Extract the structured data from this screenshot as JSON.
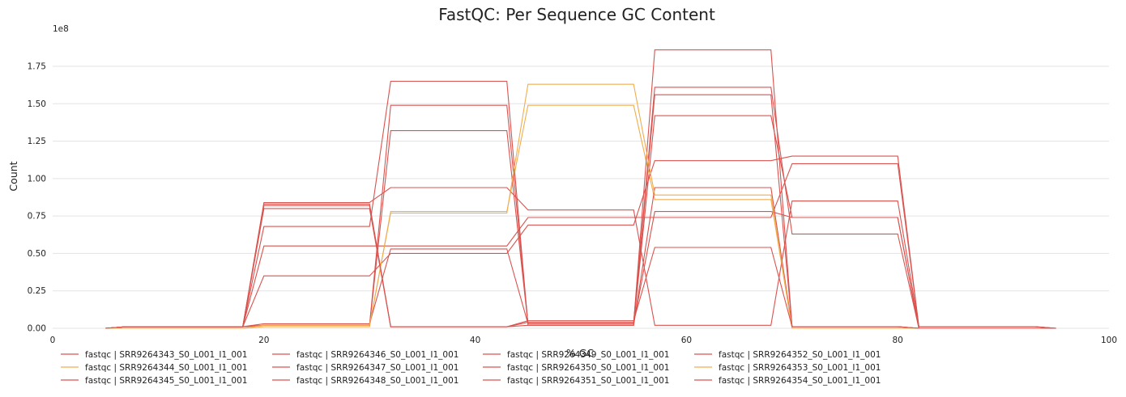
{
  "chart_data": {
    "type": "line",
    "title": "FastQC: Per Sequence GC Content",
    "xlabel": "% GC",
    "ylabel": "Count",
    "y_multiplier_label": "1e8",
    "xlim": [
      0,
      100
    ],
    "ylim": [
      0,
      1.95
    ],
    "x_ticks": [
      "0",
      "20",
      "40",
      "60",
      "80",
      "100"
    ],
    "y_ticks": [
      "0.00",
      "0.25",
      "0.50",
      "0.75",
      "1.00",
      "1.25",
      "1.50",
      "1.75"
    ],
    "grid": "horizontal",
    "legend_position": "bottom",
    "x": [
      5,
      7,
      18,
      20,
      30,
      32,
      43,
      45,
      55,
      57,
      68,
      70,
      80,
      82,
      93,
      95
    ],
    "series": [
      {
        "name": "fastqc | SRR9264343_S0_L001_I1_001",
        "color": "#d9534f",
        "values": [
          0,
          0.01,
          0.01,
          0.83,
          0.83,
          0.01,
          0.01,
          0.02,
          0.02,
          1.42,
          1.42,
          0.74,
          0.74,
          0,
          0,
          0
        ]
      },
      {
        "name": "fastqc | SRR9264344_S0_L001_I1_001",
        "color": "#f0ad4e",
        "values": [
          0,
          0,
          0,
          0.01,
          0.01,
          0.78,
          0.78,
          1.49,
          1.49,
          0.86,
          0.86,
          0,
          0,
          0,
          0,
          0
        ]
      },
      {
        "name": "fastqc | SRR9264345_S0_L001_I1_001",
        "color": "#d9534f",
        "values": [
          0,
          0.01,
          0.01,
          0.8,
          0.8,
          0.01,
          0.01,
          0.04,
          0.04,
          1.61,
          1.61,
          0.63,
          0.63,
          0,
          0,
          0
        ]
      },
      {
        "name": "fastqc | SRR9264346_S0_L001_I1_001",
        "color": "#d9534f",
        "values": [
          0,
          0.01,
          0.01,
          0.68,
          0.68,
          1.65,
          1.65,
          0.02,
          0.02,
          0.94,
          0.94,
          0.01,
          0.01,
          0,
          0,
          0
        ]
      },
      {
        "name": "fastqc | SRR9264347_S0_L001_I1_001",
        "color": "#d9534f",
        "values": [
          0,
          0.01,
          0.01,
          0.02,
          0.02,
          1.49,
          1.49,
          0.03,
          0.03,
          1.56,
          1.56,
          0.01,
          0.01,
          0,
          0,
          0
        ]
      },
      {
        "name": "fastqc | SRR9264348_S0_L001_I1_001",
        "color": "#d9534f",
        "values": [
          0,
          0.01,
          0.01,
          0.35,
          0.35,
          0.5,
          0.5,
          0.69,
          0.69,
          1.12,
          1.12,
          1.15,
          1.15,
          0.01,
          0.01,
          0
        ]
      },
      {
        "name": "fastqc | SRR9264349_S0_L001_I1_001",
        "color": "#d9534f",
        "values": [
          0,
          0.01,
          0.01,
          0.02,
          0.02,
          1.32,
          1.32,
          0.03,
          0.03,
          1.86,
          1.86,
          0.01,
          0.01,
          0,
          0,
          0
        ]
      },
      {
        "name": "fastqc | SRR9264350_S0_L001_I1_001",
        "color": "#d9534f",
        "values": [
          0,
          0.01,
          0.01,
          0.55,
          0.55,
          0.55,
          0.55,
          0.74,
          0.74,
          0.74,
          0.74,
          1.1,
          1.1,
          0.01,
          0.01,
          0
        ]
      },
      {
        "name": "fastqc | SRR9264351_S0_L001_I1_001",
        "color": "#d9534f",
        "values": [
          0,
          0.01,
          0.01,
          0.84,
          0.84,
          0.94,
          0.94,
          0.79,
          0.79,
          0.02,
          0.02,
          0.85,
          0.85,
          0.01,
          0.01,
          0
        ]
      },
      {
        "name": "fastqc | SRR9264352_S0_L001_I1_001",
        "color": "#d9534f",
        "values": [
          0,
          0.01,
          0.01,
          0.03,
          0.03,
          0.53,
          0.53,
          0.03,
          0.03,
          0.78,
          0.78,
          0.74,
          0.74,
          0,
          0,
          0
        ]
      },
      {
        "name": "fastqc | SRR9264353_S0_L001_I1_001",
        "color": "#f0ad4e",
        "values": [
          0,
          0,
          0,
          0.02,
          0.02,
          0.77,
          0.77,
          1.63,
          1.63,
          0.89,
          0.89,
          0,
          0,
          0,
          0,
          0
        ]
      },
      {
        "name": "fastqc | SRR9264354_S0_L001_I1_001",
        "color": "#d9534f",
        "values": [
          0,
          0.01,
          0.01,
          0.82,
          0.82,
          0.01,
          0.01,
          0.05,
          0.05,
          0.54,
          0.54,
          0.01,
          0.01,
          0,
          0,
          0
        ]
      }
    ]
  }
}
